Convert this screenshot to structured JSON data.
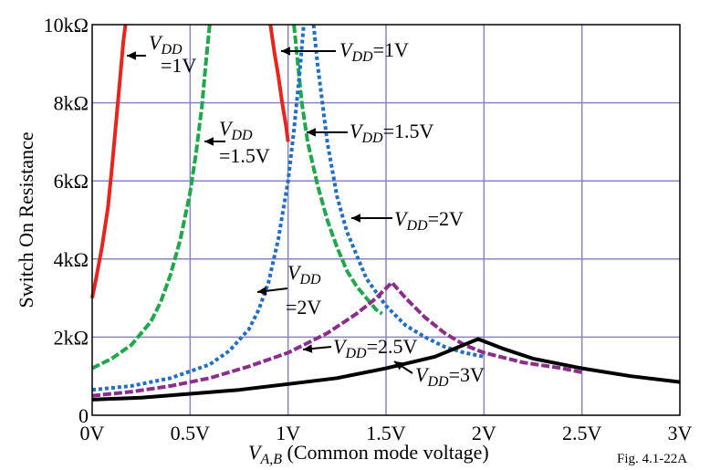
{
  "chart_data": {
    "type": "line",
    "ylabel": "Switch On Resistance",
    "xlabel": {
      "main": "V",
      "sub": "A,B",
      "rest": " (Common mode voltage)"
    },
    "figure_label": "Fig. 4.1-22A",
    "xlim": [
      0,
      3
    ],
    "ylim": [
      0,
      10000
    ],
    "x_ticks": [
      {
        "value": 0,
        "label": "0V"
      },
      {
        "value": 0.5,
        "label": "0.5V"
      },
      {
        "value": 1,
        "label": "1V"
      },
      {
        "value": 1.5,
        "label": "1.5V"
      },
      {
        "value": 2,
        "label": "2V"
      },
      {
        "value": 2.5,
        "label": "2.5V"
      },
      {
        "value": 3,
        "label": "3V"
      }
    ],
    "y_ticks": [
      {
        "value": 0,
        "label": "0"
      },
      {
        "value": 2000,
        "label": "2kΩ"
      },
      {
        "value": 4000,
        "label": "4kΩ"
      },
      {
        "value": 6000,
        "label": "6kΩ"
      },
      {
        "value": 8000,
        "label": "8kΩ"
      },
      {
        "value": 10000,
        "label": "10kΩ"
      }
    ],
    "grid": true,
    "colors": {
      "vdd1": "#e8241c",
      "vdd15": "#1ea84a",
      "vdd2": "#1f6fc5",
      "vdd25": "#8e2c8e",
      "vdd3": "#000000",
      "grid": "#8a84c4"
    },
    "series": [
      {
        "id": "vdd1-nmos",
        "color": "#e8241c",
        "dash": "solid",
        "x": [
          0,
          0.02,
          0.05,
          0.08,
          0.1,
          0.12,
          0.14,
          0.16,
          0.17
        ],
        "y": [
          3000,
          3500,
          4300,
          5300,
          6300,
          7400,
          8500,
          9600,
          10000
        ]
      },
      {
        "id": "vdd1-pmos",
        "color": "#e8241c",
        "dash": "solid",
        "x": [
          0.91,
          0.93,
          0.95,
          0.97,
          0.99,
          1.0
        ],
        "y": [
          10000,
          9300,
          8700,
          8000,
          7400,
          7000
        ]
      },
      {
        "id": "vdd15-nmos",
        "color": "#1ea84a",
        "dash": "dashed",
        "x": [
          0,
          0.1,
          0.2,
          0.3,
          0.35,
          0.4,
          0.45,
          0.5,
          0.53,
          0.56,
          0.58,
          0.6
        ],
        "y": [
          1200,
          1450,
          1800,
          2400,
          2900,
          3600,
          4500,
          5700,
          6700,
          7900,
          9000,
          10000
        ]
      },
      {
        "id": "vdd15-pmos",
        "color": "#1ea84a",
        "dash": "dashed",
        "x": [
          1.03,
          1.05,
          1.07,
          1.1,
          1.15,
          1.2,
          1.25,
          1.3,
          1.35,
          1.4,
          1.45,
          1.48
        ],
        "y": [
          10000,
          9000,
          8000,
          7000,
          5900,
          5000,
          4300,
          3700,
          3300,
          3000,
          2700,
          2600
        ]
      },
      {
        "id": "vdd2-nmos",
        "color": "#1f6fc5",
        "dash": "dotted",
        "x": [
          0,
          0.2,
          0.4,
          0.6,
          0.7,
          0.8,
          0.85,
          0.9,
          0.95,
          1.0,
          1.03,
          1.06,
          1.08
        ],
        "y": [
          650,
          750,
          950,
          1300,
          1650,
          2200,
          2700,
          3400,
          4500,
          6000,
          7300,
          8800,
          10000
        ]
      },
      {
        "id": "vdd2-pmos",
        "color": "#1f6fc5",
        "dash": "dotted",
        "x": [
          1.13,
          1.15,
          1.2,
          1.25,
          1.3,
          1.4,
          1.5,
          1.6,
          1.7,
          1.8,
          1.9,
          2.0
        ],
        "y": [
          10000,
          9000,
          7000,
          5600,
          4700,
          3500,
          2800,
          2300,
          2000,
          1750,
          1600,
          1500
        ]
      },
      {
        "id": "vdd25",
        "color": "#8e2c8e",
        "dash": "dashed",
        "x": [
          0,
          0.2,
          0.4,
          0.6,
          0.8,
          1.0,
          1.2,
          1.35,
          1.45,
          1.53,
          1.6,
          1.7,
          1.8,
          1.9,
          2.0,
          2.2,
          2.4,
          2.5
        ],
        "y": [
          500,
          600,
          750,
          950,
          1250,
          1600,
          2100,
          2600,
          3000,
          3400,
          3000,
          2500,
          2100,
          1800,
          1600,
          1350,
          1200,
          1100
        ]
      },
      {
        "id": "vdd3",
        "color": "#000000",
        "dash": "solid",
        "x": [
          0,
          0.25,
          0.5,
          0.75,
          1.0,
          1.25,
          1.5,
          1.75,
          1.97,
          2.1,
          2.25,
          2.5,
          2.75,
          3.0
        ],
        "y": [
          400,
          450,
          550,
          650,
          800,
          950,
          1200,
          1500,
          1950,
          1700,
          1450,
          1200,
          1000,
          850
        ]
      }
    ],
    "annotations": [
      {
        "id": "vdd1-left",
        "line1": {
          "main": "V",
          "sub": "DD",
          "rest": ""
        },
        "line2": "=1V"
      },
      {
        "id": "vdd1-right",
        "line1": {
          "main": "V",
          "sub": "DD",
          "rest": "=1V"
        }
      },
      {
        "id": "vdd15-left",
        "line1": {
          "main": "V",
          "sub": "DD",
          "rest": ""
        },
        "line2": "=1.5V"
      },
      {
        "id": "vdd15-right",
        "line1": {
          "main": "V",
          "sub": "DD",
          "rest": "=1.5V"
        }
      },
      {
        "id": "vdd2-left",
        "line1": {
          "main": "V",
          "sub": "DD",
          "rest": ""
        },
        "line2": "=2V"
      },
      {
        "id": "vdd2-right",
        "line1": {
          "main": "V",
          "sub": "DD",
          "rest": "=2V"
        }
      },
      {
        "id": "vdd25",
        "line1": {
          "main": "V",
          "sub": "DD",
          "rest": "=2.5V"
        }
      },
      {
        "id": "vdd3",
        "line1": {
          "main": "V",
          "sub": "DD",
          "rest": "=3V"
        }
      }
    ]
  }
}
